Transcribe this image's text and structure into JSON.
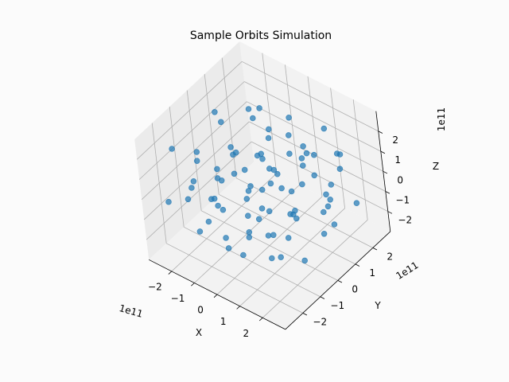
{
  "chart_data": {
    "type": "scatter",
    "title": "Sample Orbits Simulation",
    "xlabel": "X",
    "ylabel": "Y",
    "zlabel": "Z",
    "offset_labels": {
      "x": "1e11",
      "y": "1e11",
      "z": "1e11"
    },
    "xlim": [
      -3,
      3
    ],
    "ylim": [
      -3,
      3
    ],
    "zlim": [
      -3,
      3
    ],
    "scale_factor": "1e11",
    "xticks": [
      "−2",
      "−1",
      "0",
      "1",
      "2"
    ],
    "yticks": [
      "−2",
      "−1",
      "0",
      "1",
      "2"
    ],
    "zticks": [
      "−2",
      "−1",
      "0",
      "1",
      "2"
    ],
    "tick_values": [
      -2,
      -1,
      0,
      1,
      2
    ],
    "grid": true,
    "marker_color": "#1f77b4",
    "points": [
      [
        -2.4,
        -1.8,
        1.9
      ],
      [
        -2.1,
        0.3,
        2.2
      ],
      [
        -1.8,
        -1.2,
        1.6
      ],
      [
        -1.5,
        1.4,
        1.8
      ],
      [
        -1.2,
        -2.2,
        1.3
      ],
      [
        -0.9,
        0.9,
        2.1
      ],
      [
        -0.6,
        -0.5,
        1.7
      ],
      [
        -0.3,
        2.1,
        1.5
      ],
      [
        0.2,
        -1.6,
        2.0
      ],
      [
        0.5,
        1.1,
        1.9
      ],
      [
        0.8,
        -0.2,
        1.4
      ],
      [
        1.1,
        2.3,
        1.6
      ],
      [
        1.4,
        -1.1,
        1.8
      ],
      [
        1.7,
        0.6,
        2.1
      ],
      [
        2.0,
        -2.0,
        1.5
      ],
      [
        2.3,
        1.5,
        1.7
      ],
      [
        -2.5,
        1.0,
        0.9
      ],
      [
        -2.2,
        -0.8,
        0.6
      ],
      [
        -1.9,
        2.4,
        0.8
      ],
      [
        -1.6,
        -1.9,
        0.5
      ],
      [
        -1.3,
        0.1,
        0.7
      ],
      [
        -1.0,
        1.7,
        0.4
      ],
      [
        -0.7,
        -1.3,
        0.9
      ],
      [
        -0.4,
        0.6,
        0.6
      ],
      [
        -0.1,
        -2.3,
        0.8
      ],
      [
        0.3,
        2.0,
        0.5
      ],
      [
        0.6,
        -0.7,
        0.7
      ],
      [
        0.9,
        1.2,
        0.9
      ],
      [
        1.2,
        -1.7,
        0.4
      ],
      [
        1.5,
        0.4,
        0.6
      ],
      [
        1.8,
        2.2,
        0.8
      ],
      [
        2.1,
        -0.9,
        0.5
      ],
      [
        2.4,
        0.9,
        0.7
      ],
      [
        -2.3,
        -2.4,
        -0.2
      ],
      [
        -2.0,
        0.8,
        0.1
      ],
      [
        -1.7,
        -0.4,
        -0.3
      ],
      [
        -1.4,
        2.2,
        0.2
      ],
      [
        -1.1,
        -1.5,
        -0.1
      ],
      [
        -0.8,
        1.0,
        0.3
      ],
      [
        -0.5,
        -0.2,
        -0.4
      ],
      [
        -0.2,
        1.8,
        0.0
      ],
      [
        0.1,
        -1.0,
        0.2
      ],
      [
        0.4,
        2.4,
        -0.2
      ],
      [
        0.7,
        0.2,
        0.1
      ],
      [
        1.0,
        -2.1,
        -0.3
      ],
      [
        1.3,
        1.3,
        0.2
      ],
      [
        1.6,
        -0.5,
        -0.1
      ],
      [
        1.9,
        2.0,
        0.3
      ],
      [
        2.2,
        -1.4,
        -0.2
      ],
      [
        2.5,
        0.5,
        0.0
      ],
      [
        -2.4,
        0.4,
        -0.9
      ],
      [
        -2.1,
        -1.6,
        -0.6
      ],
      [
        -1.8,
        1.9,
        -1.1
      ],
      [
        -1.5,
        -0.9,
        -0.8
      ],
      [
        -1.2,
        0.7,
        -1.3
      ],
      [
        -0.9,
        -2.0,
        -0.7
      ],
      [
        -0.6,
        1.5,
        -1.0
      ],
      [
        -0.3,
        -0.6,
        -1.2
      ],
      [
        0.0,
        2.2,
        -0.8
      ],
      [
        0.3,
        -1.3,
        -1.1
      ],
      [
        0.6,
        0.8,
        -0.6
      ],
      [
        0.9,
        -2.4,
        -1.0
      ],
      [
        1.2,
        1.9,
        -1.3
      ],
      [
        1.5,
        -0.1,
        -0.7
      ],
      [
        1.8,
        1.0,
        -1.1
      ],
      [
        2.1,
        -1.8,
        -0.9
      ],
      [
        2.4,
        2.1,
        -1.2
      ],
      [
        -2.2,
        1.6,
        -1.8
      ],
      [
        -1.8,
        -0.2,
        -2.1
      ],
      [
        -1.4,
        2.0,
        -1.6
      ],
      [
        -1.0,
        -1.1,
        -2.3
      ],
      [
        -0.6,
        0.5,
        -1.9
      ],
      [
        -0.2,
        -1.9,
        -1.7
      ],
      [
        0.2,
        1.3,
        -2.2
      ],
      [
        0.6,
        -0.4,
        -1.8
      ],
      [
        1.0,
        2.3,
        -2.0
      ],
      [
        1.4,
        -1.5,
        -1.6
      ],
      [
        1.8,
        0.9,
        -2.1
      ],
      [
        2.2,
        -0.7,
        -1.9
      ],
      [
        -2.0,
        -1.3,
        -2.4
      ],
      [
        0.0,
        0.0,
        -2.5
      ],
      [
        1.6,
        1.7,
        -2.4
      ]
    ]
  }
}
